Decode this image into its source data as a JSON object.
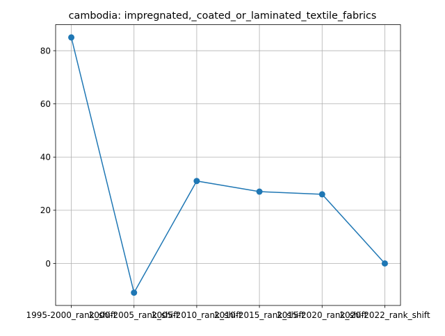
{
  "chart_data": {
    "type": "line",
    "title": "cambodia: impregnated,_coated_or_laminated_textile_fabrics",
    "xlabel": "",
    "ylabel": "",
    "categories": [
      "1995-2000_rank_shift",
      "2000-2005_rank_shift",
      "2005-2010_rank_shift",
      "2010-2015_rank_shift",
      "2015-2020_rank_shift",
      "2020-2022_rank_shift"
    ],
    "series": [
      {
        "values": [
          85,
          -11,
          31,
          27,
          26,
          0
        ],
        "color": "#1f77b4",
        "marker": "circle"
      }
    ],
    "ylim": [
      -15.8,
      89.8
    ],
    "yticks": [
      0,
      20,
      40,
      60,
      80
    ],
    "grid": true,
    "legend": "none"
  }
}
